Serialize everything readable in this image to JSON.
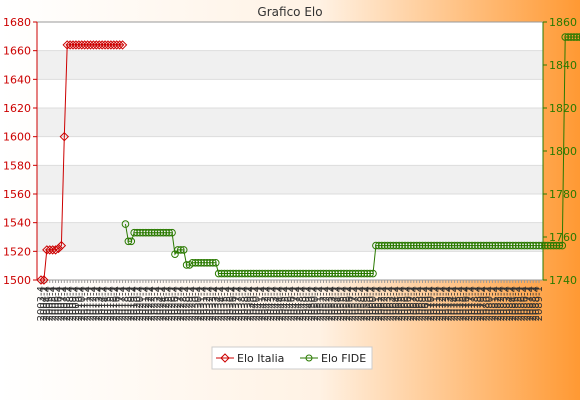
{
  "chart_data": {
    "type": "line",
    "title": "Grafico Elo",
    "xlabel": "",
    "ylabel": "",
    "left_axis": {
      "ylim": [
        1500,
        1680
      ],
      "ticks": [
        1500,
        1520,
        1540,
        1560,
        1580,
        1600,
        1620,
        1640,
        1660,
        1680
      ],
      "color": "#cc0000"
    },
    "right_axis": {
      "ylim": [
        1740,
        1860
      ],
      "ticks": [
        1740,
        1760,
        1780,
        1800,
        1820,
        1840,
        1860
      ],
      "color": "#2a7a00"
    },
    "x_tick_labels": [
      "2003-4",
      "2004-1",
      "2004-4",
      "2005-1",
      "2005-4",
      "2006-1",
      "2006-4",
      "2007-1",
      "2007-4",
      "2008-1",
      "2008-4",
      "2009-1",
      "2009-4",
      "2010-1",
      "2010-4",
      "2011-1",
      "2011-4",
      "2012-1",
      "2012-4",
      "2013-1",
      "2013-4",
      "2014-1",
      "2014-4",
      "2015-1",
      "2015-4",
      "2016-1",
      "2016-4",
      "2017-1",
      "2017-4",
      "2018-1",
      "2018-4",
      "2019-1",
      "2019-4",
      "2020-1",
      "2020-4",
      "2021-1",
      "2021-4",
      "2022-1",
      "2022-4",
      "2023-1",
      "2023-4",
      "2024-1",
      "2024-4",
      "2025-1",
      "2025-4",
      "2026-1",
      "2026-4",
      "2027-1",
      "2027-4",
      "2028-1",
      "2028-4",
      "2029-1",
      "2029-4",
      "2030-1",
      "2030-4",
      "2031-1",
      "2031-4",
      "2032-1",
      "2032-4",
      "2033-1",
      "2033-4",
      "2034-1",
      "2034-4",
      "2035-1",
      "2035-4",
      "2036-1",
      "2036-4",
      "2037-1",
      "2037-4",
      "2038-1",
      "2038-4",
      "2039-1",
      "2039-4",
      "2040-1",
      "2040-4",
      "2041-1",
      "2041-4",
      "2042-1",
      "2042-4",
      "2043-1",
      "2043-4",
      "2044-1",
      "2044-4",
      "2045-1",
      "2045-4",
      "2046-1",
      "2046-4",
      "2047-1",
      "2047-4",
      "2048-1",
      "2048-4",
      "2049-1",
      "2049-4",
      "2050-1",
      "2050-4",
      "2051-1",
      "2051-4",
      "2052-1",
      "2052-4",
      "2053-1",
      "2053-4",
      "2054-1",
      "2054-4",
      "2055-1",
      "2055-4",
      "2056-1",
      "2056-4",
      "2057-1",
      "2057-4",
      "2058-1",
      "2058-4",
      "2059-1",
      "2059-4",
      "2060-1",
      "2060-4",
      "2061-1",
      "2061-4",
      "2062-1",
      "2062-4",
      "2063-1",
      "2063-4",
      "2064-1",
      "2064-4",
      "2065-1",
      "2065-4",
      "2066-1",
      "2066-4",
      "2067-1",
      "2067-4",
      "2068-1",
      "2068-4",
      "2069-1",
      "2069-4",
      "2070-1",
      "2070-4",
      "2071-1",
      "2071-4",
      "2072-1",
      "2072-4",
      "2073-1",
      "2073-4",
      "2074-1",
      "2074-4",
      "2075-1",
      "2075-4",
      "2076-1",
      "2076-4",
      "2077-1",
      "2077-4",
      "2078-1",
      "2078-4",
      "2079-1",
      "2079-4",
      "2080-1",
      "2080-4",
      "2081-1",
      "2081-4",
      "2082-1",
      "2082-4",
      "2083-1",
      "2083-4",
      "2084-1",
      "2084-4",
      "2085-1",
      "2085-4",
      "2086-1",
      "2086-4",
      "2087-1",
      "2087-4",
      "2088-1",
      "2088-4",
      "2089-1"
    ],
    "series": [
      {
        "name": "Elo Italia",
        "axis": "left",
        "color": "#cc0000",
        "marker": "diamond",
        "x_index": [
          0,
          1,
          2,
          3,
          4,
          5,
          6,
          7,
          8,
          9,
          10,
          11,
          12,
          13,
          14,
          15,
          16,
          17,
          18,
          19,
          20,
          21,
          22,
          23,
          24,
          25,
          26,
          27,
          28
        ],
        "values": [
          1500,
          1500,
          1521,
          1521,
          1521,
          1521,
          1522,
          1524,
          1600,
          1664,
          1664,
          1664,
          1664,
          1664,
          1664,
          1664,
          1664,
          1664,
          1664,
          1664,
          1664,
          1664,
          1664,
          1664,
          1664,
          1664,
          1664,
          1664,
          1664
        ]
      },
      {
        "name": "Elo FIDE",
        "axis": "right",
        "color": "#2a7a00",
        "marker": "circle",
        "x_start": 29,
        "values": [
          1766,
          1758,
          1758,
          1762,
          1762,
          1762,
          1762,
          1762,
          1762,
          1762,
          1762,
          1762,
          1762,
          1762,
          1762,
          1762,
          1762,
          1752,
          1754,
          1754,
          1754,
          1747,
          1747,
          1748,
          1748,
          1748,
          1748,
          1748,
          1748,
          1748,
          1748,
          1748,
          1743,
          1743,
          1743,
          1743,
          1743,
          1743,
          1743,
          1743,
          1743,
          1743,
          1743,
          1743,
          1743,
          1743,
          1743,
          1743,
          1743,
          1743,
          1743,
          1743,
          1743,
          1743,
          1743,
          1743,
          1743,
          1743,
          1743,
          1743,
          1743,
          1743,
          1743,
          1743,
          1743,
          1743,
          1743,
          1743,
          1743,
          1743,
          1743,
          1743,
          1743,
          1743,
          1743,
          1743,
          1743,
          1743,
          1743,
          1743,
          1743,
          1743,
          1743,
          1743,
          1743,
          1743,
          1756,
          1756,
          1756,
          1756,
          1756,
          1756,
          1756,
          1756,
          1756,
          1756,
          1756,
          1756,
          1756,
          1756,
          1756,
          1756,
          1756,
          1756,
          1756,
          1756,
          1756,
          1756,
          1756,
          1756,
          1756,
          1756,
          1756,
          1756,
          1756,
          1756,
          1756,
          1756,
          1756,
          1756,
          1756,
          1756,
          1756,
          1756,
          1756,
          1756,
          1756,
          1756,
          1756,
          1756,
          1756,
          1756,
          1756,
          1756,
          1756,
          1756,
          1756,
          1756,
          1756,
          1756,
          1756,
          1756,
          1756,
          1756,
          1756,
          1756,
          1756,
          1756,
          1756,
          1756,
          1756,
          1853,
          1853,
          1853,
          1853,
          1853,
          1853,
          1853,
          1853,
          1853,
          1853,
          1853,
          1853,
          1853,
          1853,
          1853,
          1853,
          1853,
          1853,
          1853,
          1853,
          1853,
          1853,
          1853,
          1853,
          1853,
          1853,
          1853,
          1853,
          1853
        ]
      }
    ],
    "grid": true,
    "legend_position": "bottom-center",
    "background_gradient": [
      "#ffffff",
      "#ff9933"
    ]
  }
}
